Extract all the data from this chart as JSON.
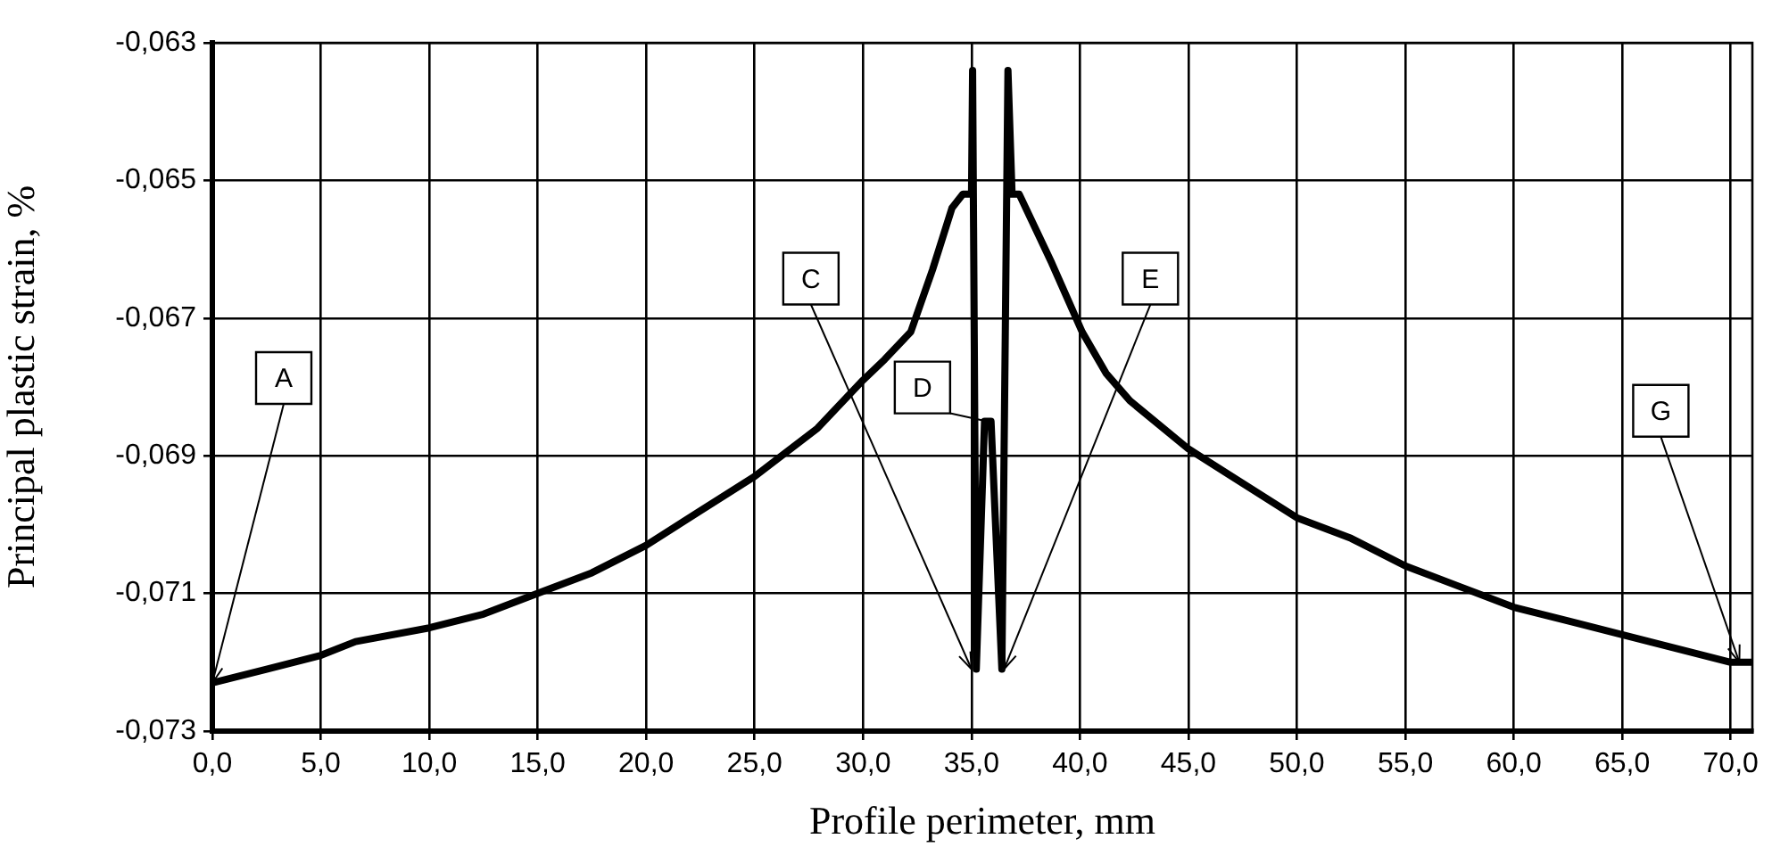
{
  "chart_data": {
    "type": "line",
    "xlabel": "Profile perimeter, mm",
    "ylabel": "Principal plastic strain, %",
    "xlim": [
      0,
      71
    ],
    "ylim": [
      -0.073,
      -0.063
    ],
    "xticks": [
      {
        "value": 0,
        "label": "0,0"
      },
      {
        "value": 5,
        "label": "5,0"
      },
      {
        "value": 10,
        "label": "10,0"
      },
      {
        "value": 15,
        "label": "15,0"
      },
      {
        "value": 20,
        "label": "20,0"
      },
      {
        "value": 25,
        "label": "25,0"
      },
      {
        "value": 30,
        "label": "30,0"
      },
      {
        "value": 35,
        "label": "35,0"
      },
      {
        "value": 40,
        "label": "40,0"
      },
      {
        "value": 45,
        "label": "45,0"
      },
      {
        "value": 50,
        "label": "50,0"
      },
      {
        "value": 55,
        "label": "55,0"
      },
      {
        "value": 60,
        "label": "60,0"
      },
      {
        "value": 65,
        "label": "65,0"
      },
      {
        "value": 70,
        "label": "70,0"
      }
    ],
    "yticks": [
      {
        "value": -0.073,
        "label": "-0,073"
      },
      {
        "value": -0.071,
        "label": "-0,071"
      },
      {
        "value": -0.069,
        "label": "-0,069"
      },
      {
        "value": -0.067,
        "label": "-0,067"
      },
      {
        "value": -0.065,
        "label": "-0,065"
      },
      {
        "value": -0.063,
        "label": "-0,063"
      }
    ],
    "grid": true,
    "legend": false,
    "marker": "none",
    "line_style": "solid",
    "series": [
      {
        "color": "#000000",
        "x": [
          0,
          2.5,
          5,
          6.6,
          10,
          12.5,
          15,
          17.5,
          20,
          22.5,
          25,
          27.9,
          30,
          31,
          32.2,
          33.2,
          34.1,
          34.6,
          35.0,
          35.05,
          35.22,
          35.6,
          35.9,
          36.4,
          36.68,
          36.87,
          37.2,
          38.7,
          39.4,
          40.1,
          41.2,
          42.3,
          45,
          47,
          50,
          52.5,
          55,
          57.5,
          60,
          62.5,
          65,
          67.5,
          70,
          71
        ],
        "values": [
          -0.0723,
          -0.0721,
          -0.0719,
          -0.0717,
          -0.0715,
          -0.0713,
          -0.071,
          -0.0707,
          -0.0703,
          -0.0698,
          -0.0693,
          -0.0686,
          -0.0679,
          -0.0676,
          -0.0672,
          -0.0663,
          -0.0654,
          -0.0652,
          -0.0652,
          -0.0634,
          -0.0721,
          -0.0685,
          -0.0685,
          -0.0721,
          -0.0634,
          -0.0652,
          -0.0652,
          -0.0662,
          -0.0667,
          -0.0672,
          -0.0678,
          -0.0682,
          -0.0689,
          -0.0693,
          -0.0699,
          -0.0702,
          -0.0706,
          -0.0709,
          -0.0712,
          -0.0714,
          -0.0716,
          -0.0718,
          -0.072,
          -0.072
        ]
      }
    ],
    "annotations": [
      {
        "text": "A",
        "x": 0,
        "y": -0.0723
      },
      {
        "text": "C",
        "x": 35.0,
        "y": -0.0721
      },
      {
        "text": "D",
        "x": 35.7,
        "y": -0.0685
      },
      {
        "text": "E",
        "x": 36.5,
        "y": -0.0721
      },
      {
        "text": "G",
        "x": 70.4,
        "y": -0.072
      }
    ]
  }
}
